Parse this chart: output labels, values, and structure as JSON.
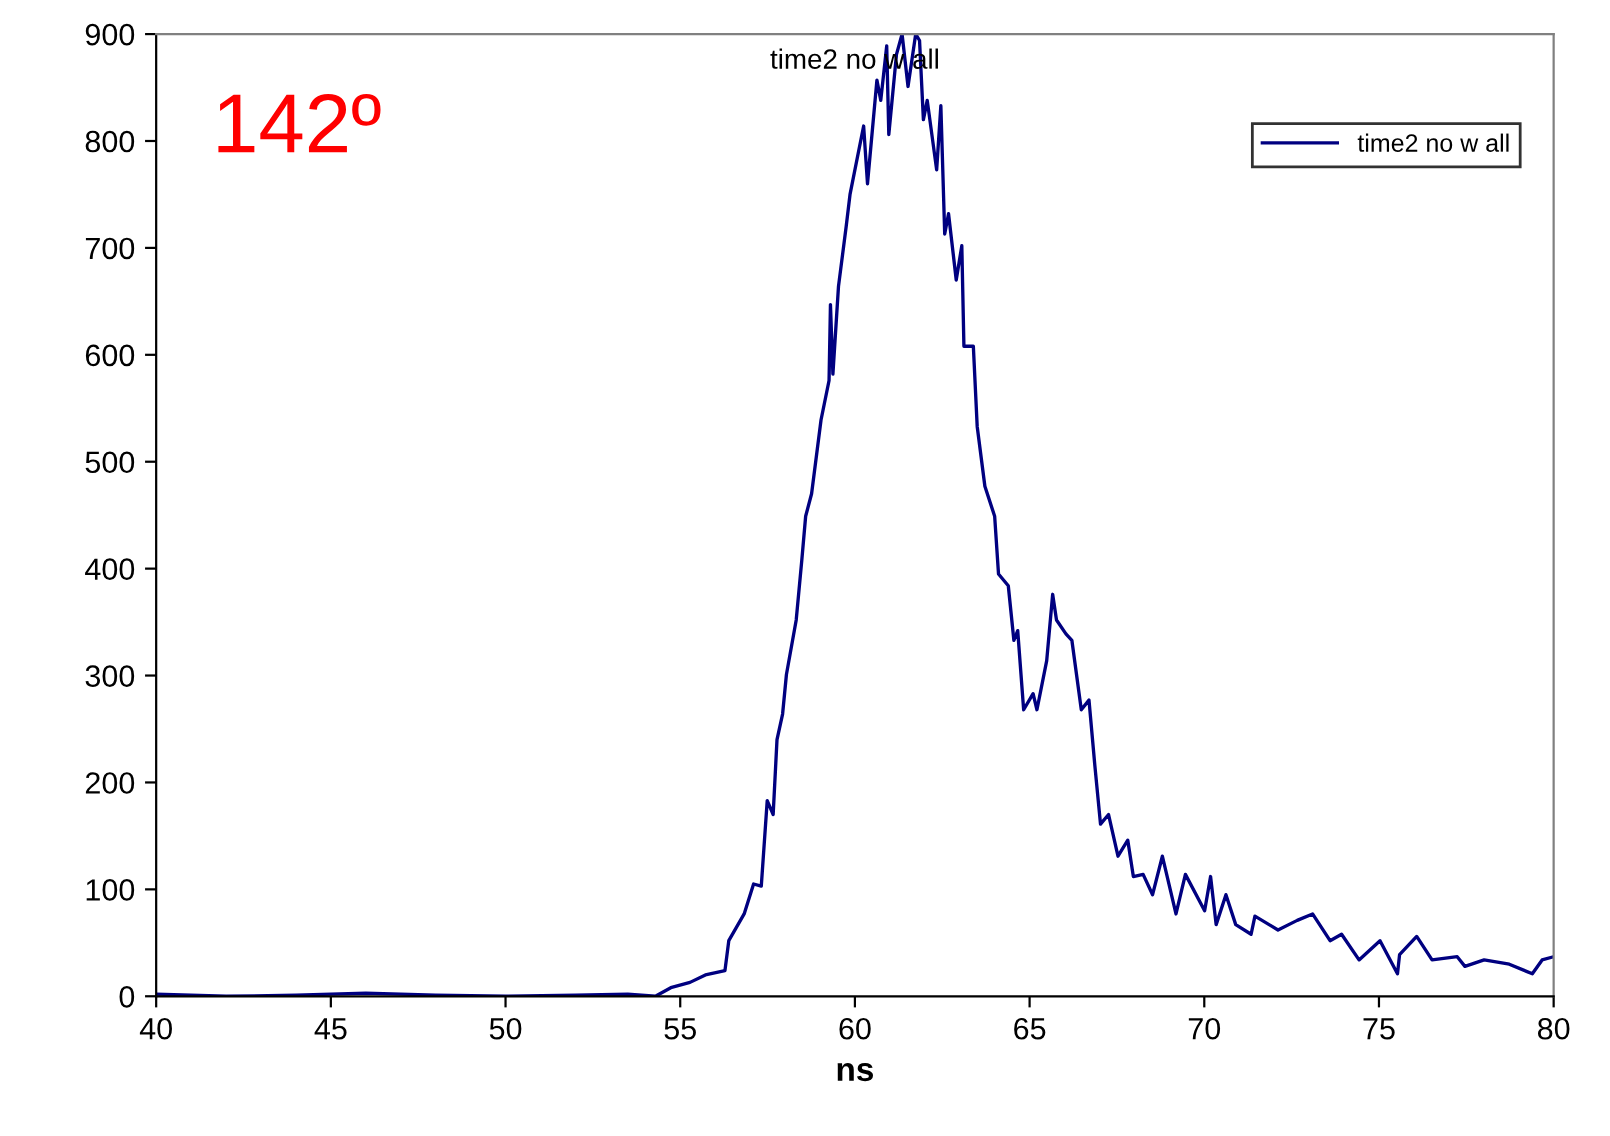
{
  "chart_data": {
    "type": "line",
    "title": "time2 no w all",
    "xlabel": "ns",
    "annotations": [
      "142º"
    ],
    "xlim": [
      40,
      80
    ],
    "xticks": [
      40,
      45,
      50,
      55,
      60,
      65,
      70,
      75,
      80
    ],
    "ylim": [
      0,
      900
    ],
    "yticks": [
      0,
      100,
      200,
      300,
      400,
      500,
      600,
      700,
      800,
      900
    ],
    "grid": false,
    "legend": "top right",
    "marker": "none",
    "line_style": "solid",
    "series": [
      {
        "name": "time2 no w all",
        "color": "#000080",
        "x": [
          40,
          42,
          44,
          46,
          48,
          50,
          52,
          53.5,
          54.29,
          54.73,
          55.28,
          55.72,
          56.28,
          56.39,
          56.83,
          57.1,
          57.32,
          57.49,
          57.66,
          57.77,
          57.93,
          58.04,
          58.32,
          58.48,
          58.59,
          58.76,
          59.03,
          59.26,
          59.3,
          59.37,
          59.53,
          59.75,
          59.86,
          60.25,
          60.36,
          60.63,
          60.74,
          60.91,
          60.97,
          61.19,
          61.35,
          61.52,
          61.74,
          61.85,
          61.96,
          62.07,
          62.34,
          62.46,
          62.57,
          62.68,
          62.9,
          63.06,
          63.12,
          63.39,
          63.5,
          63.72,
          64.0,
          64.11,
          64.39,
          64.55,
          64.66,
          64.83,
          65.1,
          65.21,
          65.49,
          65.66,
          65.77,
          66.04,
          66.21,
          66.48,
          66.7,
          66.87,
          67.03,
          67.26,
          67.53,
          67.81,
          67.97,
          68.25,
          68.52,
          68.8,
          69.19,
          69.46,
          70.01,
          70.18,
          70.34,
          70.62,
          70.9,
          71.34,
          71.45,
          72.11,
          72.66,
          73.1,
          73.6,
          73.93,
          74.43,
          75.03,
          75.53,
          75.59,
          76.08,
          76.52,
          77.24,
          77.46,
          78.01,
          78.73,
          79.39,
          79.67,
          80
        ],
        "values": [
          2,
          0,
          1,
          3,
          1,
          0,
          1,
          2,
          0,
          8,
          13,
          20,
          24,
          52,
          77,
          105,
          103,
          183,
          170,
          240,
          264,
          301,
          352,
          408,
          449,
          470,
          539,
          576,
          647,
          582,
          664,
          720,
          750,
          814,
          760,
          857,
          838,
          889,
          806,
          881,
          900,
          851,
          900,
          894,
          820,
          838,
          773,
          833,
          713,
          732,
          670,
          702,
          608,
          608,
          533,
          477,
          449,
          395,
          384,
          333,
          342,
          268,
          283,
          268,
          314,
          376,
          352,
          339,
          333,
          268,
          277,
          215,
          161,
          170,
          131,
          146,
          112,
          114,
          95,
          131,
          77,
          114,
          80,
          112,
          67,
          95,
          67,
          58,
          75,
          62,
          71,
          77,
          52,
          58,
          34,
          52,
          21,
          39,
          56,
          34,
          37,
          28,
          34,
          30,
          21,
          34,
          37
        ]
      }
    ]
  }
}
